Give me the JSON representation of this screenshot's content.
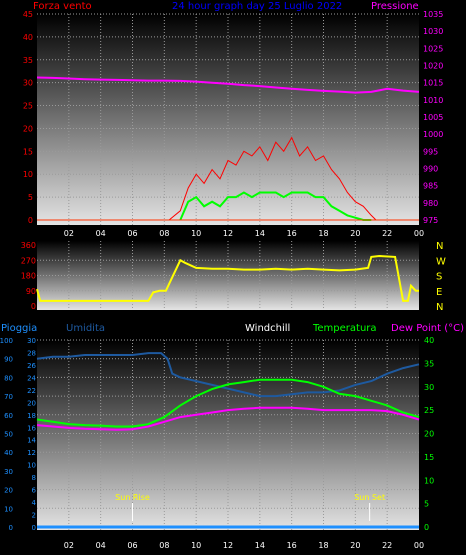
{
  "chart_data": [
    {
      "type": "line",
      "title": "24 hour graph day  25 Luglio 2022",
      "left_axis_label": "Forza vento",
      "right_axis_label": "Pressione",
      "x_tick_labels": [
        "02",
        "04",
        "06",
        "08",
        "10",
        "12",
        "14",
        "16",
        "18",
        "20",
        "22",
        "00"
      ],
      "left_ylim": [
        0,
        45
      ],
      "left_ticks": [
        0,
        5,
        10,
        15,
        20,
        25,
        30,
        35,
        40,
        45
      ],
      "right_ylim": [
        975,
        1035
      ],
      "right_ticks": [
        975,
        980,
        985,
        990,
        995,
        1000,
        1005,
        1010,
        1015,
        1020,
        1025,
        1030,
        1035
      ],
      "grid": true,
      "colors": {
        "gust": "#ff0000",
        "wind": "#00ff00",
        "pressure": "#ff00ff",
        "left_axis": "#ff0000",
        "right_axis": "#ff00ff",
        "title": "#0000ff"
      },
      "series": [
        {
          "key": "pressure",
          "axis": "right",
          "x": [
            0,
            1,
            2,
            3,
            4,
            5,
            6,
            7,
            8,
            9,
            10,
            11,
            12,
            13,
            14,
            15,
            16,
            17,
            18,
            19,
            20,
            21,
            22,
            23,
            24
          ],
          "values": [
            1016.5,
            1016.4,
            1016.2,
            1016.0,
            1015.9,
            1015.8,
            1015.7,
            1015.6,
            1015.6,
            1015.5,
            1015.3,
            1015.0,
            1014.7,
            1014.3,
            1014.0,
            1013.6,
            1013.2,
            1012.9,
            1012.6,
            1012.4,
            1012.1,
            1012.3,
            1013.2,
            1012.7,
            1012.3
          ]
        },
        {
          "key": "gust",
          "axis": "left",
          "x": [
            8.3,
            9.0,
            9.5,
            10.0,
            10.5,
            11.0,
            11.5,
            12.0,
            12.5,
            13.0,
            13.5,
            14.0,
            14.5,
            15.0,
            15.5,
            16.0,
            16.5,
            17.0,
            17.5,
            18.0,
            18.5,
            19.0,
            19.5,
            20.0,
            20.5,
            21.0,
            21.3
          ],
          "values": [
            0,
            2,
            7,
            10,
            8,
            11,
            9,
            13,
            12,
            15,
            14,
            16,
            13,
            17,
            15,
            18,
            14,
            16,
            13,
            14,
            11,
            9,
            6,
            4,
            3,
            1,
            0
          ]
        },
        {
          "key": "wind",
          "axis": "left",
          "x": [
            9.0,
            9.5,
            10.0,
            10.5,
            11.0,
            11.5,
            12.0,
            12.5,
            13.0,
            13.5,
            14.0,
            14.5,
            15.0,
            15.5,
            16.0,
            16.5,
            17.0,
            17.5,
            18.0,
            18.5,
            19.0,
            19.5,
            20.0,
            20.5,
            21.0
          ],
          "values": [
            0,
            4,
            5,
            3,
            4,
            3,
            5,
            5,
            6,
            5,
            6,
            6,
            6,
            5,
            6,
            6,
            6,
            5,
            5,
            3,
            2,
            1,
            0.5,
            0,
            0
          ]
        }
      ]
    },
    {
      "type": "line",
      "direction_labels": [
        "N",
        "W",
        "S",
        "E",
        "N"
      ],
      "left_ylim": [
        0,
        360
      ],
      "left_ticks": [
        0,
        90,
        180,
        270,
        360
      ],
      "x_tick_labels": [
        "02",
        "04",
        "06",
        "08",
        "10",
        "12",
        "14",
        "16",
        "18",
        "20",
        "22",
        "00"
      ],
      "colors": {
        "direction": "#ffff00",
        "axis": "#ff0000"
      },
      "series": [
        {
          "key": "direction",
          "x": [
            0,
            0.2,
            1,
            6,
            7,
            7.3,
            7.7,
            8.1,
            8.4,
            9.0,
            9.3,
            10,
            11,
            12,
            13,
            14,
            15,
            16,
            17,
            18,
            19,
            20,
            20.8,
            21.0,
            21.5,
            22.5,
            23.0,
            23.3,
            23.5,
            23.8,
            24
          ],
          "values": [
            100,
            30,
            30,
            30,
            30,
            80,
            90,
            90,
            150,
            270,
            255,
            225,
            220,
            220,
            215,
            215,
            220,
            215,
            220,
            215,
            210,
            215,
            225,
            290,
            295,
            290,
            30,
            30,
            120,
            90,
            90
          ]
        }
      ]
    },
    {
      "type": "line",
      "labels": {
        "rain": "Pioggia",
        "humidity": "Umidita",
        "windchill": "Windchill",
        "temperature": "Temperatura",
        "dewpoint": "Dew Point (°C)"
      },
      "humidity_ylim": [
        0,
        100
      ],
      "humidity_ticks": [
        0,
        10,
        20,
        30,
        40,
        50,
        60,
        70,
        80,
        90,
        100
      ],
      "rain_ylim": [
        0,
        30
      ],
      "rain_ticks": [
        0,
        2,
        4,
        6,
        8,
        10,
        12,
        14,
        16,
        18,
        20,
        22,
        24,
        26,
        28,
        30
      ],
      "temp_ylim": [
        0,
        40
      ],
      "temp_ticks": [
        0,
        5,
        10,
        15,
        20,
        25,
        30,
        35,
        40
      ],
      "x_tick_labels": [
        "02",
        "04",
        "06",
        "08",
        "10",
        "12",
        "14",
        "16",
        "18",
        "20",
        "22",
        "00"
      ],
      "annotations": [
        {
          "text": "Sun Rise",
          "x": 6.0
        },
        {
          "text": "Sun Set",
          "x": 20.9
        }
      ],
      "colors": {
        "rain": "#1e90ff",
        "humidity": "#1e5aa0",
        "windchill": "#ffffff",
        "temperature": "#00ff00",
        "dewpoint": "#ff00ff",
        "temp_axis": "#00ff00",
        "annotation": "#ffff00"
      },
      "series": [
        {
          "key": "humidity",
          "axis": "humidity",
          "x": [
            0,
            1,
            2,
            3,
            4,
            5,
            6,
            7,
            7.5,
            7.8,
            8.2,
            8.5,
            9,
            10,
            11,
            12,
            13,
            14,
            15,
            16,
            17,
            18,
            19,
            20,
            21,
            22,
            23,
            24
          ],
          "values": [
            90,
            91,
            91,
            92,
            92,
            92,
            92,
            93,
            93,
            93,
            90,
            82,
            80,
            78,
            76,
            74,
            72,
            70,
            70,
            71,
            72,
            72,
            73,
            76,
            78,
            82,
            85,
            87
          ]
        },
        {
          "key": "temperature",
          "axis": "temp",
          "x": [
            0,
            1,
            2,
            3,
            4,
            5,
            6,
            7,
            8,
            9,
            10,
            11,
            12,
            13,
            14,
            15,
            16,
            17,
            18,
            19,
            20,
            21,
            22,
            23,
            24
          ],
          "values": [
            23,
            22.5,
            22,
            21.8,
            21.7,
            21.5,
            21.5,
            22,
            23.5,
            26,
            28,
            29.5,
            30.5,
            31,
            31.5,
            31.5,
            31.5,
            31,
            30,
            28.5,
            28,
            27,
            26,
            24.5,
            23.5
          ]
        },
        {
          "key": "dewpoint",
          "axis": "temp",
          "x": [
            0,
            1,
            2,
            3,
            4,
            5,
            6,
            7,
            8,
            9,
            10,
            11,
            12,
            13,
            14,
            15,
            16,
            17,
            18,
            19,
            20,
            21,
            22,
            23,
            24
          ],
          "values": [
            21.8,
            21.5,
            21.2,
            21,
            20.9,
            20.8,
            20.9,
            21.5,
            22.5,
            23.5,
            24,
            24.5,
            25,
            25.3,
            25.5,
            25.5,
            25.5,
            25.3,
            25,
            25,
            25,
            25,
            24.8,
            24,
            23
          ]
        },
        {
          "key": "rain",
          "axis": "humidity",
          "x": [
            0,
            24
          ],
          "values": [
            0,
            0
          ]
        }
      ]
    }
  ]
}
